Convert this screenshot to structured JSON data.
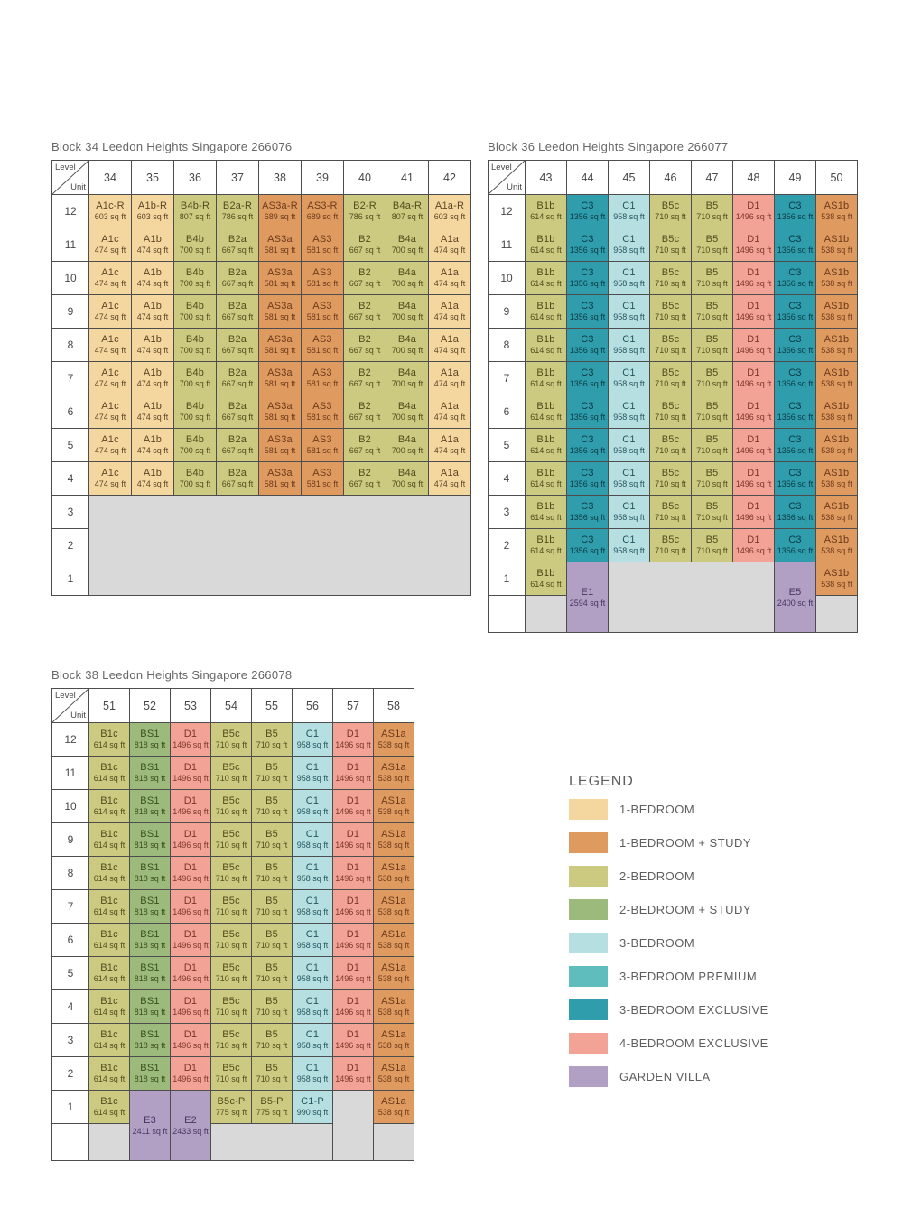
{
  "chart_data": {
    "type": "table",
    "corner": {
      "top": "Level",
      "bottom": "Unit"
    },
    "empty_color": "#d9d9d9",
    "border_color": "#4d4d4d",
    "unit_types": {
      "b1": {
        "label": "1-BEDROOM",
        "bg": "#f4d79e",
        "fg": "#5d4527"
      },
      "b1s": {
        "label": "1-BEDROOM + STUDY",
        "bg": "#de9a5f",
        "fg": "#6e3a1c"
      },
      "b2": {
        "label": "2-BEDROOM",
        "bg": "#ccc981",
        "fg": "#514d1d"
      },
      "b2s": {
        "label": "2-BEDROOM + STUDY",
        "bg": "#9dba7d",
        "fg": "#39501c"
      },
      "c3": {
        "label": "3-BEDROOM",
        "bg": "#b5dfe1",
        "fg": "#27565e"
      },
      "c3p": {
        "label": "3-BEDROOM PREMIUM",
        "bg": "#5fbdbd",
        "fg": "#0f444a"
      },
      "c3x": {
        "label": "3-BEDROOM EXCLUSIVE",
        "bg": "#2f9dab",
        "fg": "#0b3a45"
      },
      "d4": {
        "label": "4-BEDROOM EXCLUSIVE",
        "bg": "#f3a296",
        "fg": "#7a3729"
      },
      "gv": {
        "label": "GARDEN VILLA",
        "bg": "#b2a0c4",
        "fg": "#463461"
      }
    },
    "blocks": [
      {
        "title": "Block 34 Leedon Heights Singapore 266076",
        "units": [
          "34",
          "35",
          "36",
          "37",
          "38",
          "39",
          "40",
          "41",
          "42"
        ],
        "cell_sets": {
          "roof": [
            {
              "u": "A1c-R",
              "a": "603 sq ft",
              "t": "b1"
            },
            {
              "u": "A1b-R",
              "a": "603 sq ft",
              "t": "b1"
            },
            {
              "u": "B4b-R",
              "a": "807 sq ft",
              "t": "b2"
            },
            {
              "u": "B2a-R",
              "a": "786 sq ft",
              "t": "b2"
            },
            {
              "u": "AS3a-R",
              "a": "689 sq ft",
              "t": "b1s"
            },
            {
              "u": "AS3-R",
              "a": "689 sq ft",
              "t": "b1s"
            },
            {
              "u": "B2-R",
              "a": "786 sq ft",
              "t": "b2"
            },
            {
              "u": "B4a-R",
              "a": "807 sq ft",
              "t": "b2"
            },
            {
              "u": "A1a-R",
              "a": "603 sq ft",
              "t": "b1"
            }
          ],
          "typical": [
            {
              "u": "A1c",
              "a": "474 sq ft",
              "t": "b1"
            },
            {
              "u": "A1b",
              "a": "474 sq ft",
              "t": "b1"
            },
            {
              "u": "B4b",
              "a": "700 sq ft",
              "t": "b2"
            },
            {
              "u": "B2a",
              "a": "667 sq ft",
              "t": "b2"
            },
            {
              "u": "AS3a",
              "a": "581 sq ft",
              "t": "b1s"
            },
            {
              "u": "AS3",
              "a": "581 sq ft",
              "t": "b1s"
            },
            {
              "u": "B2",
              "a": "667 sq ft",
              "t": "b2"
            },
            {
              "u": "B4a",
              "a": "700 sq ft",
              "t": "b2"
            },
            {
              "u": "A1a",
              "a": "474 sq ft",
              "t": "b1"
            }
          ]
        },
        "rows": [
          {
            "level": "12",
            "cells_ref": "roof"
          },
          {
            "level": "11",
            "cells_ref": "typical"
          },
          {
            "level": "10",
            "cells_ref": "typical"
          },
          {
            "level": "9",
            "cells_ref": "typical"
          },
          {
            "level": "8",
            "cells_ref": "typical"
          },
          {
            "level": "7",
            "cells_ref": "typical"
          },
          {
            "level": "6",
            "cells_ref": "typical"
          },
          {
            "level": "5",
            "cells_ref": "typical"
          },
          {
            "level": "4",
            "cells_ref": "typical"
          },
          {
            "level": "3",
            "cells": [
              {
                "empty": true,
                "colspan": 9,
                "rowspan": 3
              }
            ]
          },
          {
            "level": "2",
            "cells": []
          },
          {
            "level": "1",
            "cells": []
          }
        ]
      },
      {
        "title": "Block 36 Leedon Heights Singapore 266077",
        "units": [
          "43",
          "44",
          "45",
          "46",
          "47",
          "48",
          "49",
          "50"
        ],
        "cell_sets": {
          "typical": [
            {
              "u": "B1b",
              "a": "614 sq ft",
              "t": "b2"
            },
            {
              "u": "C3",
              "a": "1356 sq ft",
              "t": "c3x"
            },
            {
              "u": "C1",
              "a": "958 sq ft",
              "t": "c3"
            },
            {
              "u": "B5c",
              "a": "710 sq ft",
              "t": "b2"
            },
            {
              "u": "B5",
              "a": "710 sq ft",
              "t": "b2"
            },
            {
              "u": "D1",
              "a": "1496 sq ft",
              "t": "d4"
            },
            {
              "u": "C3",
              "a": "1356 sq ft",
              "t": "c3x"
            },
            {
              "u": "AS1b",
              "a": "538 sq ft",
              "t": "b1s"
            }
          ]
        },
        "rows": [
          {
            "level": "12",
            "cells_ref": "typical"
          },
          {
            "level": "11",
            "cells_ref": "typical"
          },
          {
            "level": "10",
            "cells_ref": "typical"
          },
          {
            "level": "9",
            "cells_ref": "typical"
          },
          {
            "level": "8",
            "cells_ref": "typical"
          },
          {
            "level": "7",
            "cells_ref": "typical"
          },
          {
            "level": "6",
            "cells_ref": "typical"
          },
          {
            "level": "5",
            "cells_ref": "typical"
          },
          {
            "level": "4",
            "cells_ref": "typical"
          },
          {
            "level": "3",
            "cells_ref": "typical"
          },
          {
            "level": "2",
            "cells_ref": "typical"
          },
          {
            "level": "1",
            "cells": [
              {
                "u": "B1b",
                "a": "614 sq ft",
                "t": "b2"
              },
              {
                "u": "E1",
                "a": "2594 sq ft",
                "t": "gv",
                "rowspan": 2
              },
              {
                "empty": true,
                "colspan": 4,
                "rowspan": 2
              },
              {
                "u": "E5",
                "a": "2400 sq ft",
                "t": "gv",
                "rowspan": 2
              },
              {
                "u": "AS1b",
                "a": "538 sq ft",
                "t": "b1s"
              }
            ]
          },
          {
            "level": "",
            "extra": true,
            "cells": [
              {
                "empty": true
              },
              {
                "empty": true
              }
            ]
          }
        ]
      },
      {
        "title": "Block 38 Leedon Heights Singapore 266078",
        "units": [
          "51",
          "52",
          "53",
          "54",
          "55",
          "56",
          "57",
          "58"
        ],
        "cell_sets": {
          "typical": [
            {
              "u": "B1c",
              "a": "614 sq ft",
              "t": "b2"
            },
            {
              "u": "BS1",
              "a": "818 sq ft",
              "t": "b2s"
            },
            {
              "u": "D1",
              "a": "1496 sq ft",
              "t": "d4"
            },
            {
              "u": "B5c",
              "a": "710 sq ft",
              "t": "b2"
            },
            {
              "u": "B5",
              "a": "710 sq ft",
              "t": "b2"
            },
            {
              "u": "C1",
              "a": "958 sq ft",
              "t": "c3"
            },
            {
              "u": "D1",
              "a": "1496 sq ft",
              "t": "d4"
            },
            {
              "u": "AS1a",
              "a": "538 sq ft",
              "t": "b1s"
            }
          ]
        },
        "rows": [
          {
            "level": "12",
            "cells_ref": "typical"
          },
          {
            "level": "11",
            "cells_ref": "typical"
          },
          {
            "level": "10",
            "cells_ref": "typical"
          },
          {
            "level": "9",
            "cells_ref": "typical"
          },
          {
            "level": "8",
            "cells_ref": "typical"
          },
          {
            "level": "7",
            "cells_ref": "typical"
          },
          {
            "level": "6",
            "cells_ref": "typical"
          },
          {
            "level": "5",
            "cells_ref": "typical"
          },
          {
            "level": "4",
            "cells_ref": "typical"
          },
          {
            "level": "3",
            "cells_ref": "typical"
          },
          {
            "level": "2",
            "cells_ref": "typical"
          },
          {
            "level": "1",
            "cells": [
              {
                "u": "B1c",
                "a": "614 sq ft",
                "t": "b2"
              },
              {
                "u": "E3",
                "a": "2411 sq ft",
                "t": "gv",
                "rowspan": 2
              },
              {
                "u": "E2",
                "a": "2433 sq ft",
                "t": "gv",
                "rowspan": 2
              },
              {
                "u": "B5c-P",
                "a": "775 sq ft",
                "t": "b2"
              },
              {
                "u": "B5-P",
                "a": "775 sq ft",
                "t": "b2"
              },
              {
                "u": "C1-P",
                "a": "990 sq ft",
                "t": "c3"
              },
              {
                "empty": true,
                "rowspan": 2
              },
              {
                "u": "AS1a",
                "a": "538 sq ft",
                "t": "b1s"
              }
            ]
          },
          {
            "level": "",
            "extra": true,
            "cells": [
              {
                "empty": true
              },
              {
                "empty": true,
                "colspan": 3
              },
              {
                "empty": true
              }
            ]
          }
        ]
      }
    ],
    "legend": {
      "title": "LEGEND",
      "items": [
        "b1",
        "b1s",
        "b2",
        "b2s",
        "c3",
        "c3p",
        "c3x",
        "d4",
        "gv"
      ]
    }
  }
}
